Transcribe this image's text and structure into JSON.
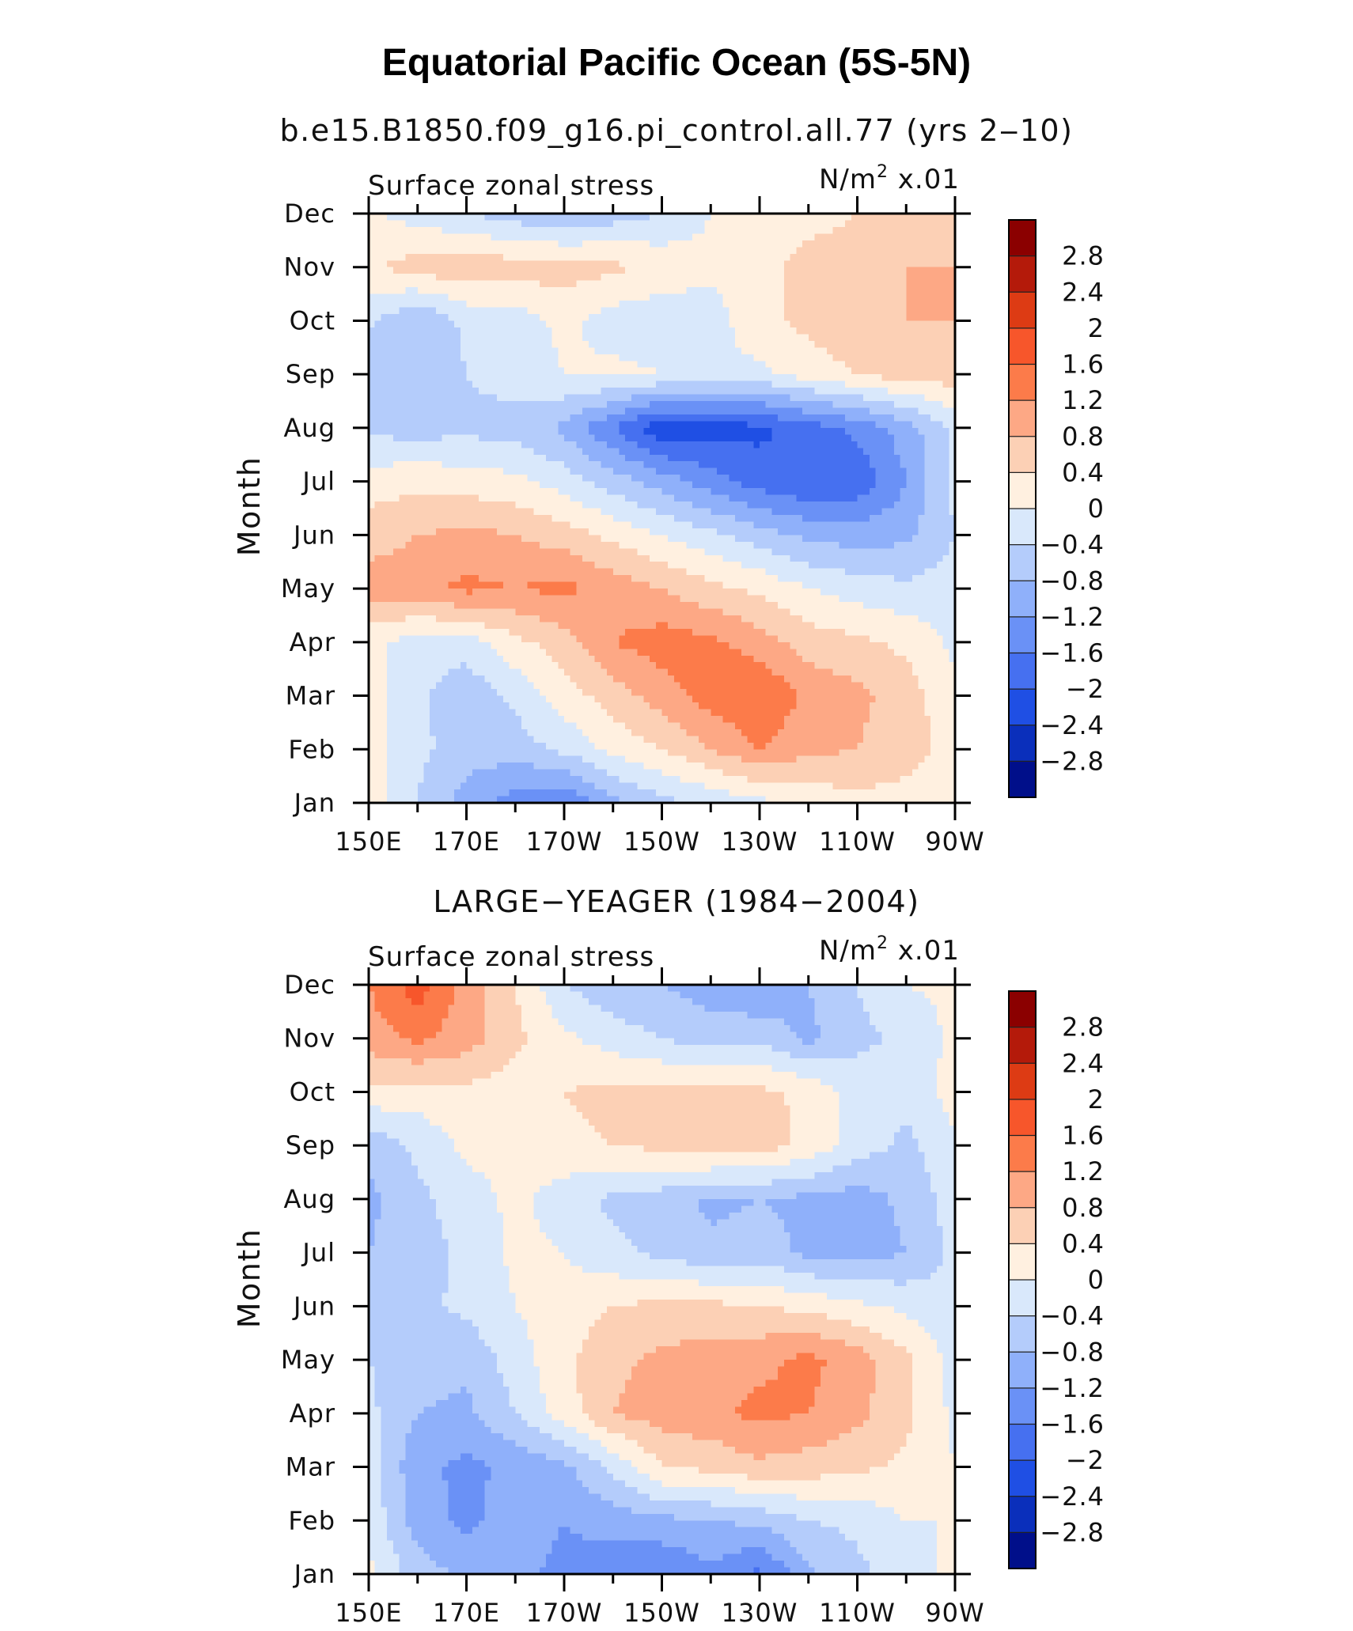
{
  "title": "Equatorial Pacific Ocean (5S-5N)",
  "panels": [
    {
      "subtitle": "b.e15.B1850.f09_g16.pi_control.all.77 (yrs 2‒10)",
      "left_label": "Surface zonal stress",
      "units_main": "N/m",
      "units_sup": "2",
      "units_scale": "x.01",
      "y_axis_label": "Month"
    },
    {
      "subtitle": "LARGE−YEAGER (1984−2004)",
      "left_label": "Surface zonal stress",
      "units_main": "N/m",
      "units_sup": "2",
      "units_scale": "x.01",
      "y_axis_label": "Month"
    }
  ],
  "chart_data": [
    {
      "type": "heatmap",
      "title": "b.e15.B1850.f09_g16.pi_control.all.77 (yrs 2‒10)",
      "variable": "Surface zonal stress",
      "units": "N/m2 x.01",
      "xlabel": "",
      "ylabel": "Month",
      "x_ticks": [
        "150E",
        "170E",
        "170W",
        "150W",
        "130W",
        "110W",
        "90W"
      ],
      "x_tick_lon_east": [
        150,
        170,
        190,
        210,
        230,
        250,
        270
      ],
      "y_ticks": [
        "Jan",
        "Feb",
        "Mar",
        "Apr",
        "May",
        "Jun",
        "Jul",
        "Aug",
        "Sep",
        "Oct",
        "Nov",
        "Dec"
      ],
      "x_lon": [
        150,
        160,
        170,
        180,
        190,
        200,
        210,
        220,
        230,
        240,
        250,
        260,
        270
      ],
      "values": [
        [
          0.2,
          -0.4,
          -1.0,
          -1.4,
          -1.6,
          -0.9,
          -0.5,
          -0.3,
          -0.1,
          0.1,
          0.3,
          0.2,
          0.1
        ],
        [
          0.2,
          -0.3,
          -0.6,
          -0.6,
          -0.3,
          0.1,
          0.4,
          0.8,
          1.2,
          0.9,
          0.8,
          0.6,
          0.2
        ],
        [
          0.2,
          -0.3,
          -0.7,
          -0.3,
          0.2,
          0.6,
          1.0,
          1.4,
          1.6,
          1.1,
          0.9,
          0.6,
          0.1
        ],
        [
          0.1,
          -0.2,
          -0.2,
          0.3,
          0.6,
          1.2,
          1.4,
          1.3,
          1.0,
          0.6,
          0.5,
          0.3,
          -0.1
        ],
        [
          1.0,
          1.1,
          1.3,
          1.2,
          1.3,
          1.0,
          0.8,
          0.5,
          0.3,
          0.0,
          -0.2,
          -0.3,
          -0.2
        ],
        [
          0.6,
          0.8,
          0.9,
          0.8,
          0.6,
          0.3,
          0.0,
          -0.3,
          -0.6,
          -0.9,
          -1.0,
          -0.9,
          -0.4
        ],
        [
          0.2,
          0.3,
          0.2,
          0.1,
          -0.2,
          -0.6,
          -1.0,
          -1.4,
          -1.8,
          -2.0,
          -1.9,
          -1.2,
          -0.3
        ],
        [
          -0.5,
          -0.6,
          -0.5,
          -0.6,
          -0.9,
          -1.6,
          -2.3,
          -2.2,
          -2.1,
          -1.8,
          -1.5,
          -1.0,
          -0.3
        ],
        [
          -0.8,
          -0.8,
          -0.4,
          -0.2,
          0.0,
          0.1,
          0.0,
          -0.1,
          -0.1,
          0.2,
          0.4,
          0.6,
          0.6
        ],
        [
          -0.3,
          -0.8,
          -0.3,
          -0.2,
          0.1,
          -0.2,
          -0.3,
          -0.2,
          0.3,
          0.5,
          0.7,
          0.8,
          0.8
        ],
        [
          0.3,
          0.6,
          0.7,
          0.6,
          0.6,
          0.5,
          0.3,
          0.1,
          0.2,
          0.6,
          0.7,
          0.8,
          0.8
        ],
        [
          0.1,
          -0.2,
          -0.4,
          -0.6,
          -0.8,
          -0.6,
          -0.4,
          0.0,
          0.1,
          0.2,
          0.4,
          0.6,
          0.6
        ]
      ],
      "color_levels": [
        -2.8,
        -2.4,
        -2.0,
        -1.6,
        -1.2,
        -0.8,
        -0.4,
        0,
        0.4,
        0.8,
        1.2,
        1.6,
        2.0,
        2.4,
        2.8
      ]
    },
    {
      "type": "heatmap",
      "title": "LARGE−YEAGER (1984−2004)",
      "variable": "Surface zonal stress",
      "units": "N/m2 x.01",
      "xlabel": "",
      "ylabel": "Month",
      "x_ticks": [
        "150E",
        "170E",
        "170W",
        "150W",
        "130W",
        "110W",
        "90W"
      ],
      "x_tick_lon_east": [
        150,
        170,
        190,
        210,
        230,
        250,
        270
      ],
      "y_ticks": [
        "Jan",
        "Feb",
        "Mar",
        "Apr",
        "May",
        "Jun",
        "Jul",
        "Aug",
        "Sep",
        "Oct",
        "Nov",
        "Dec"
      ],
      "x_lon": [
        150,
        160,
        170,
        180,
        190,
        200,
        210,
        220,
        230,
        240,
        250,
        260,
        270
      ],
      "values": [
        [
          0.1,
          -0.6,
          -0.9,
          -1.1,
          -1.3,
          -1.5,
          -1.6,
          -1.3,
          -1.7,
          -0.9,
          -0.5,
          -0.2,
          0.1
        ],
        [
          -0.1,
          -1.0,
          -1.3,
          -1.0,
          -1.2,
          -1.0,
          -0.9,
          -0.8,
          -0.7,
          -0.4,
          -0.3,
          0.0,
          0.0
        ],
        [
          -0.2,
          -1.1,
          -1.3,
          -1.1,
          -0.9,
          -0.3,
          0.4,
          0.5,
          0.7,
          0.6,
          0.5,
          0.3,
          0.0
        ],
        [
          -0.3,
          -0.8,
          -0.9,
          -0.4,
          0.2,
          0.8,
          1.0,
          1.1,
          1.3,
          1.2,
          0.9,
          0.5,
          -0.1
        ],
        [
          -0.4,
          -0.6,
          -0.7,
          -0.2,
          0.3,
          0.7,
          0.9,
          1.0,
          1.1,
          1.3,
          1.0,
          0.5,
          -0.2
        ],
        [
          -0.6,
          -0.5,
          -0.3,
          0.0,
          0.2,
          0.4,
          0.5,
          0.5,
          0.4,
          0.3,
          0.1,
          -0.1,
          -0.3
        ],
        [
          -0.8,
          -0.6,
          -0.3,
          0.1,
          0.0,
          -0.3,
          -0.5,
          -0.7,
          -0.6,
          -0.9,
          -1.0,
          -0.8,
          -0.3
        ],
        [
          -0.9,
          -0.5,
          -0.2,
          0.1,
          -0.2,
          -0.5,
          -0.6,
          -0.9,
          -0.8,
          -0.9,
          -1.0,
          -0.7,
          -0.2
        ],
        [
          -0.7,
          -0.3,
          0.1,
          0.2,
          0.3,
          0.4,
          0.5,
          0.7,
          0.6,
          0.3,
          -0.2,
          -0.5,
          -0.1
        ],
        [
          0.3,
          0.2,
          0.3,
          0.2,
          0.4,
          0.5,
          0.5,
          0.6,
          0.5,
          0.3,
          -0.2,
          -0.3,
          0.2
        ],
        [
          1.0,
          1.3,
          1.0,
          0.5,
          0.1,
          -0.2,
          -0.4,
          -0.6,
          -0.5,
          -0.9,
          -0.5,
          -0.3,
          0.1
        ],
        [
          1.2,
          1.8,
          1.0,
          0.4,
          -0.4,
          -0.7,
          -0.8,
          -1.0,
          -1.2,
          -0.8,
          -0.4,
          0.0,
          0.1
        ]
      ],
      "color_levels": [
        -2.8,
        -2.4,
        -2.0,
        -1.6,
        -1.2,
        -0.8,
        -0.4,
        0,
        0.4,
        0.8,
        1.2,
        1.6,
        2.0,
        2.4,
        2.8
      ]
    }
  ],
  "colorbar": {
    "labels": [
      "2.8",
      "2.4",
      "2",
      "1.6",
      "1.2",
      "0.8",
      "0.4",
      "0",
      "−0.4",
      "−0.8",
      "−1.2",
      "−1.6",
      "−2",
      "−2.4",
      "−2.8"
    ],
    "colors_top_to_bottom": [
      "#8b0000",
      "#b41a0a",
      "#dd3b14",
      "#f7562b",
      "#fc7b4a",
      "#fda885",
      "#fcd0b5",
      "#fff0e0",
      "#d9e8fb",
      "#b4ccfb",
      "#8fb0fa",
      "#6a91f6",
      "#4670f0",
      "#1f4fe4",
      "#0a2fbb",
      "#000f8a"
    ]
  }
}
